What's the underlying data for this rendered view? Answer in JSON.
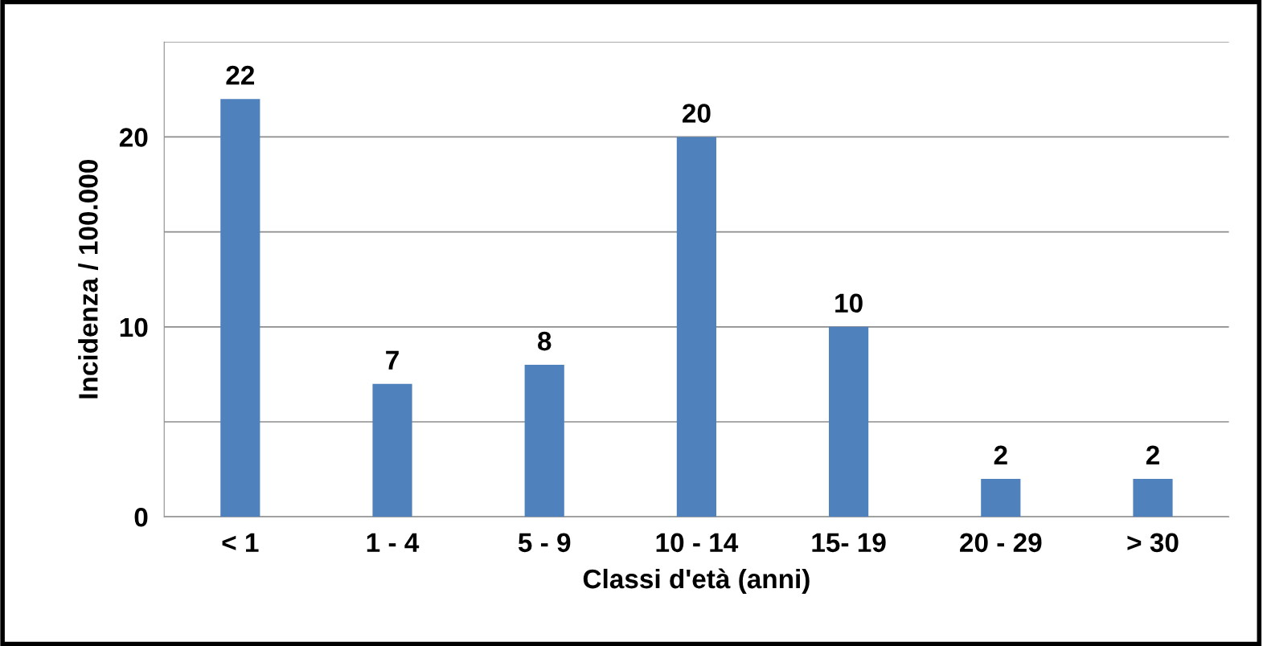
{
  "chart_data": {
    "type": "bar",
    "xlabel": "Classi d'età (anni)",
    "ylabel": "Incidenza / 100.000",
    "categories": [
      "< 1",
      "1 - 4",
      "5 - 9",
      "10 - 14",
      "15- 19",
      "20 - 29",
      "> 30"
    ],
    "values": [
      22,
      7,
      8,
      20,
      10,
      2,
      2
    ],
    "color": "#4f81bd",
    "data_labels": true,
    "ylim": [
      0,
      25
    ],
    "yticks": [
      0,
      {
        "value": 5,
        "label": null
      },
      10,
      {
        "value": 15,
        "label": null
      },
      20,
      {
        "value": 25,
        "label": null
      }
    ],
    "grid": "y",
    "legend": false
  }
}
